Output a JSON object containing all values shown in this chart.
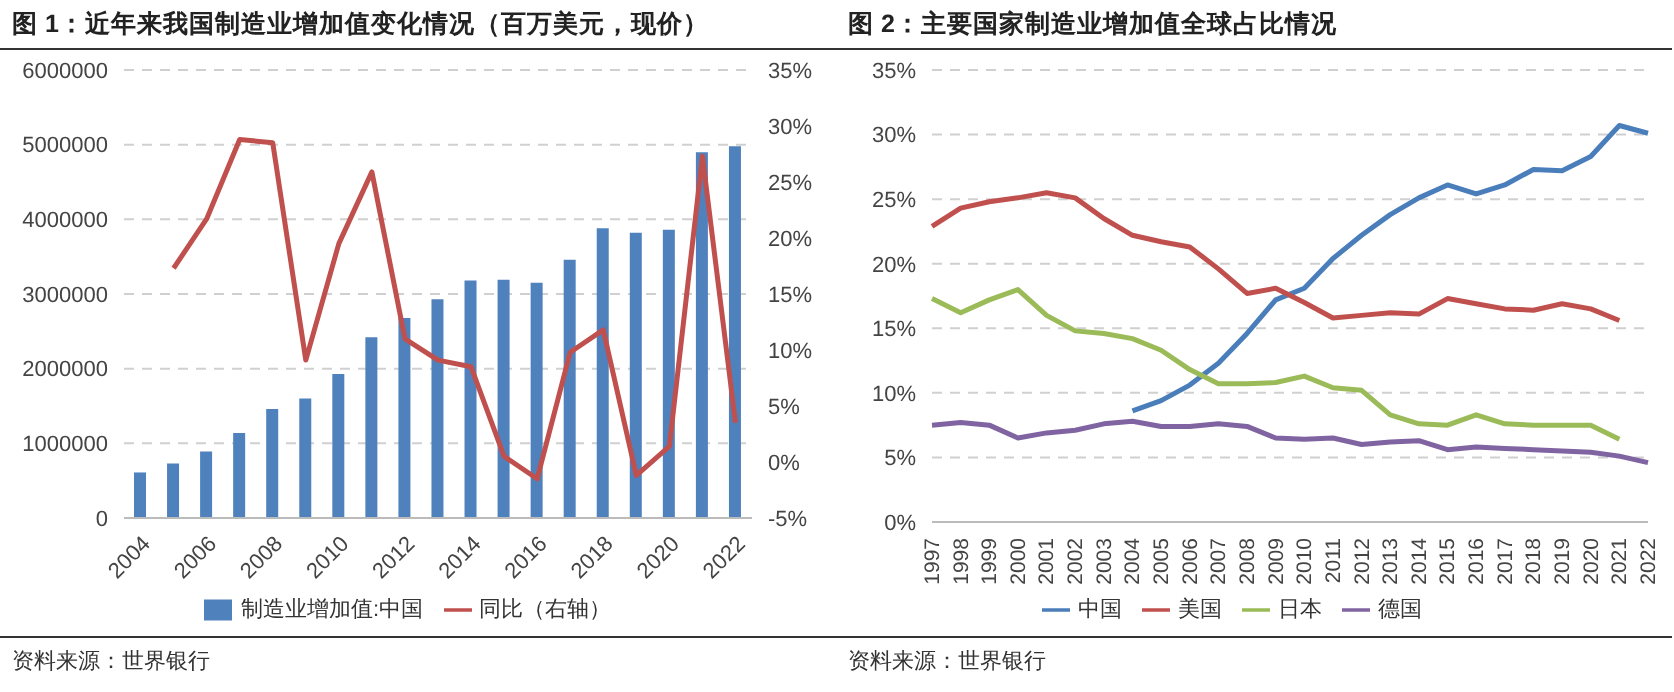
{
  "chart_data": [
    {
      "type": "bar",
      "title": "图 1：近年来我国制造业增加值变化情况（百万美元，现价）",
      "categories": [
        "2004",
        null,
        "2006",
        null,
        "2008",
        null,
        "2010",
        null,
        "2012",
        null,
        "2014",
        null,
        "2016",
        null,
        "2018",
        null,
        "2020",
        null,
        "2022"
      ],
      "series": [
        {
          "name": "制造业增加值:中国",
          "color": "#4f81bd",
          "values": [
            610000,
            730000,
            890000,
            1140000,
            1460000,
            1600000,
            1930000,
            2420000,
            2680000,
            2930000,
            3180000,
            3190000,
            3150000,
            3460000,
            3880000,
            3820000,
            3860000,
            4900000,
            4980000
          ]
        },
        {
          "name": "同比（右轴）",
          "type": "line",
          "axis": "y2",
          "color": "#c0504d",
          "values": [
            null,
            17.3,
            21.7,
            28.8,
            28.5,
            9.1,
            19.5,
            25.9,
            11.0,
            9.1,
            8.5,
            0.5,
            -1.5,
            9.8,
            11.8,
            -1.2,
            1.4,
            27.3,
            3.5
          ]
        }
      ],
      "ylim": [
        0,
        6000000
      ],
      "yticks": [
        0,
        1000000,
        2000000,
        3000000,
        4000000,
        5000000,
        6000000
      ],
      "y2lim": [
        -5,
        35
      ],
      "y2ticks": [
        {
          "value": -5,
          "label": "-5%"
        },
        {
          "value": 0,
          "label": "0%"
        },
        {
          "value": 5,
          "label": "5%"
        },
        {
          "value": 10,
          "label": "10%"
        },
        {
          "value": 15,
          "label": "15%"
        },
        {
          "value": 20,
          "label": "20%"
        },
        {
          "value": 25,
          "label": "25%"
        },
        {
          "value": 30,
          "label": "30%"
        },
        {
          "value": 35,
          "label": "35%"
        }
      ],
      "grid": "y",
      "legend": "bottom",
      "marker": "none",
      "line_style": "solid",
      "annotations": [
        "资料来源：世界银行"
      ]
    },
    {
      "type": "line",
      "title": "图 2：主要国家制造业增加值全球占比情况",
      "categories": [
        "1997",
        "1998",
        "1999",
        "2000",
        "2001",
        "2002",
        "2003",
        "2004",
        "2005",
        "2006",
        "2007",
        "2008",
        "2009",
        "2010",
        "2011",
        "2012",
        "2013",
        "2014",
        "2015",
        "2016",
        "2017",
        "2018",
        "2019",
        "2020",
        "2021",
        "2022"
      ],
      "series": [
        {
          "name": "中国",
          "color": "#4a7ebb",
          "values": [
            null,
            null,
            null,
            null,
            null,
            null,
            null,
            8.6,
            9.4,
            10.6,
            12.3,
            14.6,
            17.2,
            18.1,
            20.4,
            22.2,
            23.8,
            25.1,
            26.1,
            25.4,
            26.1,
            27.3,
            27.2,
            28.3,
            30.7,
            30.1
          ]
        },
        {
          "name": "美国",
          "color": "#c0504d",
          "values": [
            22.9,
            24.3,
            24.8,
            25.1,
            25.5,
            25.1,
            23.5,
            22.2,
            21.7,
            21.3,
            19.6,
            17.7,
            18.1,
            17.0,
            15.8,
            16.0,
            16.2,
            16.1,
            17.3,
            16.9,
            16.5,
            16.4,
            16.9,
            16.5,
            15.6,
            null
          ]
        },
        {
          "name": "日本",
          "color": "#9bbb59",
          "values": [
            17.3,
            16.2,
            17.2,
            18.0,
            16.0,
            14.8,
            14.6,
            14.2,
            13.3,
            11.8,
            10.7,
            10.7,
            10.8,
            11.3,
            10.4,
            10.2,
            8.3,
            7.6,
            7.5,
            8.3,
            7.6,
            7.5,
            7.5,
            7.5,
            6.4,
            null
          ]
        },
        {
          "name": "德国",
          "color": "#8064a2",
          "values": [
            7.5,
            7.7,
            7.5,
            6.5,
            6.9,
            7.1,
            7.6,
            7.8,
            7.4,
            7.4,
            7.6,
            7.4,
            6.5,
            6.4,
            6.5,
            6.0,
            6.2,
            6.3,
            5.6,
            5.8,
            5.7,
            5.6,
            5.5,
            5.4,
            5.1,
            4.6
          ]
        }
      ],
      "ylim": [
        0,
        35
      ],
      "yticks": [
        {
          "value": 0,
          "label": "0%"
        },
        {
          "value": 5,
          "label": "5%"
        },
        {
          "value": 10,
          "label": "10%"
        },
        {
          "value": 15,
          "label": "15%"
        },
        {
          "value": 20,
          "label": "20%"
        },
        {
          "value": 25,
          "label": "25%"
        },
        {
          "value": 30,
          "label": "30%"
        },
        {
          "value": 35,
          "label": "35%"
        }
      ],
      "grid": "y",
      "legend": "bottom",
      "marker": "none",
      "line_style": "solid",
      "annotations": [
        "资料来源：世界银行"
      ]
    }
  ]
}
